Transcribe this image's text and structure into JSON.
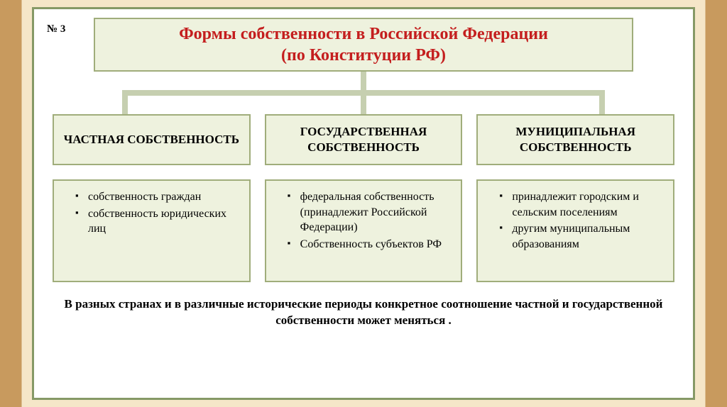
{
  "slide": {
    "number": "№ 3",
    "title_line1": "Формы собственности в Российской Федерации",
    "title_line2": "(по Конституции РФ)"
  },
  "styling": {
    "box_bg": "#eef2de",
    "box_border": "#a0ad7b",
    "slide_border": "#869966",
    "title_color": "#c41e1e",
    "connector_color": "#c6cfb0",
    "text_color": "#000000",
    "bg_wood": "#c89a5e",
    "bg_paper": "#f5e6c8",
    "title_fontsize": 24,
    "branch_title_fontsize": 17,
    "detail_fontsize": 16,
    "footer_fontsize": 17
  },
  "branches": [
    {
      "title": "ЧАСТНАЯ СОБСТВЕННОСТЬ",
      "items": [
        "собственность граждан",
        "собственность юридических лиц"
      ]
    },
    {
      "title": "ГОСУДАРСТВЕННАЯ СОБСТВЕННОСТЬ",
      "items": [
        "федеральная собственность (принадлежит Российской Федерации)",
        "Собственность субъектов РФ"
      ]
    },
    {
      "title": "МУНИЦИПАЛЬНАЯ СОБСТВЕННОСТЬ",
      "items": [
        "принадлежит городским и сельским поселениям",
        " другим муниципальным образованиям"
      ]
    }
  ],
  "footer": "В разных странах и в различные исторические периоды конкретное соотношение частной и государственной собственности может меняться ."
}
